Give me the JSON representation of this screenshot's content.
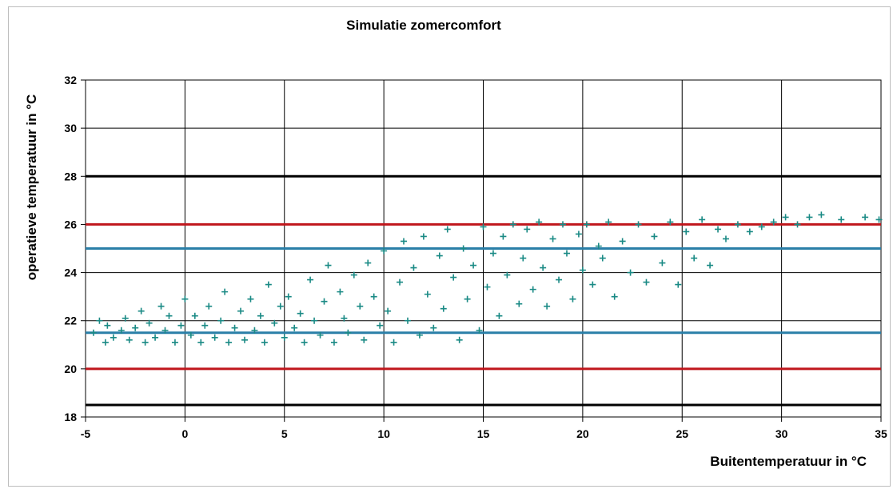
{
  "chart_data": {
    "type": "scatter",
    "title": "Simulatie zomercomfort",
    "xlabel": "Buitentemperatuur  in °C",
    "ylabel": "operatieve temperatuur  in °C",
    "xlim": [
      -5,
      35
    ],
    "ylim": [
      18,
      32
    ],
    "x_ticks": [
      -5,
      0,
      5,
      10,
      15,
      20,
      25,
      30,
      35
    ],
    "y_ticks": [
      18,
      20,
      22,
      24,
      26,
      28,
      30,
      32
    ],
    "grid": true,
    "legend": "none",
    "marker": "plus",
    "colors": {
      "points": "#1a8a85",
      "black_line": "#000000",
      "red_line": "#c0161c",
      "blue_line": "#2a7fa8",
      "grid": "#000000"
    },
    "reference_lines": [
      {
        "y": 28,
        "color": "#000000"
      },
      {
        "y": 26,
        "color": "#c0161c"
      },
      {
        "y": 25,
        "color": "#2a7fa8"
      },
      {
        "y": 21.5,
        "color": "#2a7fa8"
      },
      {
        "y": 20,
        "color": "#c0161c"
      },
      {
        "y": 18.5,
        "color": "#000000"
      }
    ],
    "series": [
      {
        "points": [
          [
            -4.6,
            21.5
          ],
          [
            -4.3,
            22.0
          ],
          [
            -4.0,
            21.1
          ],
          [
            -3.9,
            21.8
          ],
          [
            -3.6,
            21.3
          ],
          [
            -3.2,
            21.6
          ],
          [
            -3.0,
            22.1
          ],
          [
            -2.8,
            21.2
          ],
          [
            -2.5,
            21.7
          ],
          [
            -2.2,
            22.4
          ],
          [
            -2.0,
            21.1
          ],
          [
            -1.8,
            21.9
          ],
          [
            -1.5,
            21.3
          ],
          [
            -1.2,
            22.6
          ],
          [
            -1.0,
            21.6
          ],
          [
            -0.8,
            22.2
          ],
          [
            -0.5,
            21.1
          ],
          [
            -0.2,
            21.8
          ],
          [
            0.0,
            22.9
          ],
          [
            0.3,
            21.4
          ],
          [
            0.5,
            22.2
          ],
          [
            0.8,
            21.1
          ],
          [
            1.0,
            21.8
          ],
          [
            1.2,
            22.6
          ],
          [
            1.5,
            21.3
          ],
          [
            1.8,
            22.0
          ],
          [
            2.0,
            23.2
          ],
          [
            2.2,
            21.1
          ],
          [
            2.5,
            21.7
          ],
          [
            2.8,
            22.4
          ],
          [
            3.0,
            21.2
          ],
          [
            3.3,
            22.9
          ],
          [
            3.5,
            21.6
          ],
          [
            3.8,
            22.2
          ],
          [
            4.0,
            21.1
          ],
          [
            4.2,
            23.5
          ],
          [
            4.5,
            21.9
          ],
          [
            4.8,
            22.6
          ],
          [
            5.0,
            21.3
          ],
          [
            5.2,
            23.0
          ],
          [
            5.5,
            21.7
          ],
          [
            5.8,
            22.3
          ],
          [
            6.0,
            21.1
          ],
          [
            6.3,
            23.7
          ],
          [
            6.5,
            22.0
          ],
          [
            6.8,
            21.4
          ],
          [
            7.0,
            22.8
          ],
          [
            7.2,
            24.3
          ],
          [
            7.5,
            21.1
          ],
          [
            7.8,
            23.2
          ],
          [
            8.0,
            22.1
          ],
          [
            8.2,
            21.5
          ],
          [
            8.5,
            23.9
          ],
          [
            8.8,
            22.6
          ],
          [
            9.0,
            21.2
          ],
          [
            9.2,
            24.4
          ],
          [
            9.5,
            23.0
          ],
          [
            9.8,
            21.8
          ],
          [
            10.0,
            24.9
          ],
          [
            10.2,
            22.4
          ],
          [
            10.5,
            21.1
          ],
          [
            10.8,
            23.6
          ],
          [
            11.0,
            25.3
          ],
          [
            11.2,
            22.0
          ],
          [
            11.5,
            24.2
          ],
          [
            11.8,
            21.4
          ],
          [
            12.0,
            25.5
          ],
          [
            12.2,
            23.1
          ],
          [
            12.5,
            21.7
          ],
          [
            12.8,
            24.7
          ],
          [
            13.0,
            22.5
          ],
          [
            13.2,
            25.8
          ],
          [
            13.5,
            23.8
          ],
          [
            13.8,
            21.2
          ],
          [
            14.0,
            25.0
          ],
          [
            14.2,
            22.9
          ],
          [
            14.5,
            24.3
          ],
          [
            14.8,
            21.6
          ],
          [
            15.0,
            25.9
          ],
          [
            15.2,
            23.4
          ],
          [
            15.5,
            24.8
          ],
          [
            15.8,
            22.2
          ],
          [
            16.0,
            25.5
          ],
          [
            16.2,
            23.9
          ],
          [
            16.5,
            26.0
          ],
          [
            16.8,
            22.7
          ],
          [
            17.0,
            24.6
          ],
          [
            17.2,
            25.8
          ],
          [
            17.5,
            23.3
          ],
          [
            17.8,
            26.1
          ],
          [
            18.0,
            24.2
          ],
          [
            18.2,
            22.6
          ],
          [
            18.5,
            25.4
          ],
          [
            18.8,
            23.7
          ],
          [
            19.0,
            26.0
          ],
          [
            19.2,
            24.8
          ],
          [
            19.5,
            22.9
          ],
          [
            19.8,
            25.6
          ],
          [
            20.0,
            24.1
          ],
          [
            20.2,
            26.0
          ],
          [
            20.5,
            23.5
          ],
          [
            20.8,
            25.1
          ],
          [
            21.0,
            24.6
          ],
          [
            21.3,
            26.1
          ],
          [
            21.6,
            23.0
          ],
          [
            22.0,
            25.3
          ],
          [
            22.4,
            24.0
          ],
          [
            22.8,
            26.0
          ],
          [
            23.2,
            23.6
          ],
          [
            23.6,
            25.5
          ],
          [
            24.0,
            24.4
          ],
          [
            24.4,
            26.1
          ],
          [
            24.8,
            23.5
          ],
          [
            25.2,
            25.7
          ],
          [
            25.6,
            24.6
          ],
          [
            26.0,
            26.2
          ],
          [
            26.4,
            24.3
          ],
          [
            26.8,
            25.8
          ],
          [
            27.2,
            25.4
          ],
          [
            27.8,
            26.0
          ],
          [
            28.4,
            25.7
          ],
          [
            29.0,
            25.9
          ],
          [
            29.6,
            26.1
          ],
          [
            30.2,
            26.3
          ],
          [
            30.8,
            26.0
          ],
          [
            31.4,
            26.3
          ],
          [
            32.0,
            26.4
          ],
          [
            33.0,
            26.2
          ],
          [
            34.2,
            26.3
          ],
          [
            34.9,
            26.2
          ]
        ]
      }
    ]
  }
}
